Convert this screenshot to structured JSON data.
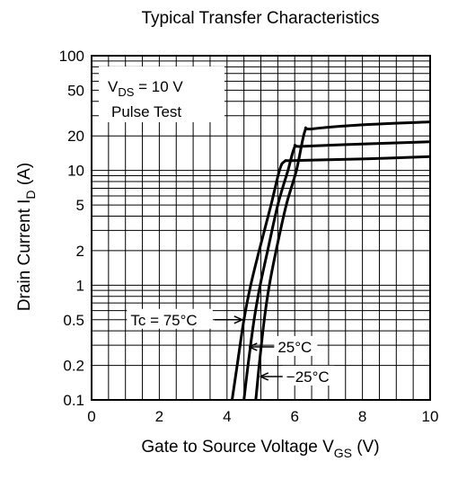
{
  "chart_data": {
    "type": "line",
    "title": "Typical Transfer Characteristics",
    "xlabel": {
      "main": "Gate to Source Voltage",
      "symbol": "V",
      "sub": "GS",
      "unit": "(V)"
    },
    "ylabel": {
      "main": "Drain Current",
      "symbol": "I",
      "sub": "D",
      "unit": "(A)"
    },
    "xlim": [
      0,
      10
    ],
    "ylim": [
      0.1,
      100
    ],
    "y_scale": "log",
    "grid": true,
    "x_ticks": [
      0,
      2,
      4,
      6,
      8,
      10
    ],
    "y_ticks": [
      0.1,
      0.2,
      0.5,
      1,
      2,
      5,
      10,
      20,
      50,
      100
    ],
    "x_tick_labels": [
      "0",
      "2",
      "4",
      "6",
      "8",
      "10"
    ],
    "y_tick_labels": [
      "0.1",
      "0.2",
      "0.5",
      "1",
      "2",
      "5",
      "10",
      "20",
      "50",
      "100"
    ],
    "conditions": [
      {
        "symbol": "V",
        "sub": "DS",
        "rest": " = 10 V"
      },
      {
        "text": "Pulse Test"
      }
    ],
    "series": [
      {
        "label": "Tc = 75°C",
        "points": [
          [
            4.15,
            0.1
          ],
          [
            4.3,
            0.2
          ],
          [
            4.5,
            0.5
          ],
          [
            4.7,
            1
          ],
          [
            4.95,
            2
          ],
          [
            5.3,
            5
          ],
          [
            5.55,
            10
          ],
          [
            5.7,
            12
          ],
          [
            6,
            12.2
          ],
          [
            8,
            12.6
          ],
          [
            10,
            13.2
          ]
        ]
      },
      {
        "label": "25°C",
        "points": [
          [
            4.5,
            0.1
          ],
          [
            4.62,
            0.2
          ],
          [
            4.8,
            0.5
          ],
          [
            4.98,
            1
          ],
          [
            5.2,
            2
          ],
          [
            5.5,
            5
          ],
          [
            5.8,
            10
          ],
          [
            6,
            16
          ],
          [
            6.2,
            16.2
          ],
          [
            8,
            17
          ],
          [
            10,
            17.8
          ]
        ]
      },
      {
        "label": "−25°C",
        "points": [
          [
            4.85,
            0.1
          ],
          [
            4.95,
            0.2
          ],
          [
            5.1,
            0.5
          ],
          [
            5.25,
            1
          ],
          [
            5.45,
            2
          ],
          [
            5.75,
            5
          ],
          [
            6.05,
            10
          ],
          [
            6.3,
            22
          ],
          [
            6.5,
            23
          ],
          [
            8,
            25
          ],
          [
            10,
            26.5
          ]
        ]
      }
    ],
    "annotations": [
      {
        "series": 0,
        "text": "Tc = 75°C",
        "arrow_to": [
          4.45,
          0.5
        ],
        "text_at": [
          1.15,
          0.5
        ]
      },
      {
        "series": 1,
        "text": "25°C",
        "arrow_to": [
          4.65,
          0.29
        ],
        "text_at": [
          5.5,
          0.29
        ]
      },
      {
        "series": 2,
        "text": "−25°C",
        "arrow_to": [
          4.98,
          0.16
        ],
        "text_at": [
          5.75,
          0.16
        ]
      }
    ]
  }
}
